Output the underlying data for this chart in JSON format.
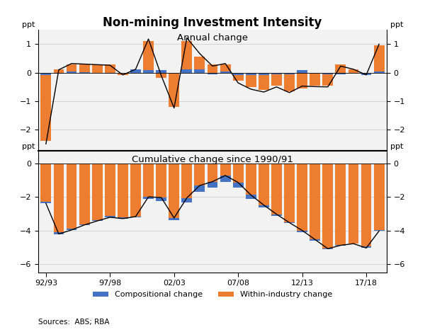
{
  "title": "Non-mining Investment Intensity",
  "panel1_title": "Annual change",
  "panel2_title": "Cumulative change since 1990/91",
  "xlabel_ticks": [
    "92/93",
    "97/98",
    "02/03",
    "07/08",
    "12/13",
    "17/18"
  ],
  "years": [
    1992,
    1993,
    1994,
    1995,
    1996,
    1997,
    1998,
    1999,
    2000,
    2001,
    2002,
    2003,
    2004,
    2005,
    2006,
    2007,
    2008,
    2009,
    2010,
    2011,
    2012,
    2013,
    2014,
    2015,
    2016,
    2017,
    2018
  ],
  "panel1_comp": [
    -0.08,
    -0.03,
    0.04,
    0.02,
    0.0,
    -0.04,
    0.0,
    0.12,
    0.08,
    0.08,
    -0.04,
    0.12,
    0.12,
    -0.05,
    0.04,
    -0.08,
    -0.08,
    -0.08,
    -0.05,
    -0.05,
    0.08,
    -0.04,
    -0.05,
    -0.05,
    0.0,
    -0.08,
    0.04
  ],
  "panel1_within": [
    -2.4,
    0.12,
    0.28,
    0.28,
    0.28,
    0.3,
    -0.08,
    0.0,
    1.1,
    -0.18,
    -1.2,
    1.1,
    0.55,
    0.28,
    0.28,
    -0.28,
    -0.5,
    -0.6,
    -0.45,
    -0.65,
    -0.55,
    -0.45,
    -0.45,
    0.28,
    0.12,
    -0.08,
    0.95
  ],
  "panel1_line": [
    -2.5,
    0.1,
    0.32,
    0.3,
    0.28,
    0.26,
    -0.08,
    0.12,
    1.18,
    -0.1,
    -1.24,
    1.22,
    0.67,
    0.23,
    0.32,
    -0.36,
    -0.58,
    -0.68,
    -0.5,
    -0.7,
    -0.47,
    -0.49,
    -0.5,
    0.23,
    0.12,
    -0.08,
    1.0
  ],
  "panel2_comp": [
    -0.08,
    -0.11,
    -0.07,
    -0.05,
    -0.05,
    -0.09,
    -0.09,
    0.03,
    0.11,
    0.19,
    0.15,
    0.27,
    0.39,
    0.34,
    0.38,
    0.3,
    0.22,
    0.14,
    0.09,
    0.04,
    0.12,
    0.08,
    0.03,
    -0.02,
    -0.02,
    -0.1,
    -0.06
  ],
  "panel2_within": [
    -2.3,
    -4.1,
    -3.9,
    -3.62,
    -3.38,
    -3.12,
    -3.2,
    -3.2,
    -2.1,
    -2.22,
    -3.4,
    -2.32,
    -1.7,
    -1.42,
    -1.09,
    -1.43,
    -2.1,
    -2.62,
    -3.12,
    -3.57,
    -4.12,
    -4.62,
    -5.12,
    -4.87,
    -4.77,
    -4.95,
    -3.97
  ],
  "panel2_line": [
    -2.38,
    -4.21,
    -3.97,
    -3.67,
    -3.43,
    -3.21,
    -3.29,
    -3.17,
    -1.99,
    -2.03,
    -3.25,
    -2.05,
    -1.31,
    -1.08,
    -0.71,
    -1.13,
    -1.88,
    -2.48,
    -3.03,
    -3.53,
    -4.0,
    -4.54,
    -5.09,
    -4.89,
    -4.79,
    -5.05,
    -4.03
  ],
  "color_comp": "#4472C4",
  "color_within": "#ED7D31",
  "color_line": "#000000",
  "panel1_ylim": [
    -2.75,
    1.5
  ],
  "panel1_yticks": [
    -2,
    -1,
    0,
    1
  ],
  "panel2_ylim": [
    -6.5,
    0.75
  ],
  "panel2_yticks": [
    -6,
    -4,
    -2,
    0
  ],
  "sources_text": "Sources:  ABS; RBA",
  "legend_comp": "Compositional change",
  "legend_within": "Within-industry change",
  "bar_width": 0.82,
  "tick_years": [
    1992,
    1997,
    2002,
    2007,
    2012,
    2017
  ],
  "bg_color": "#f2f2f2"
}
